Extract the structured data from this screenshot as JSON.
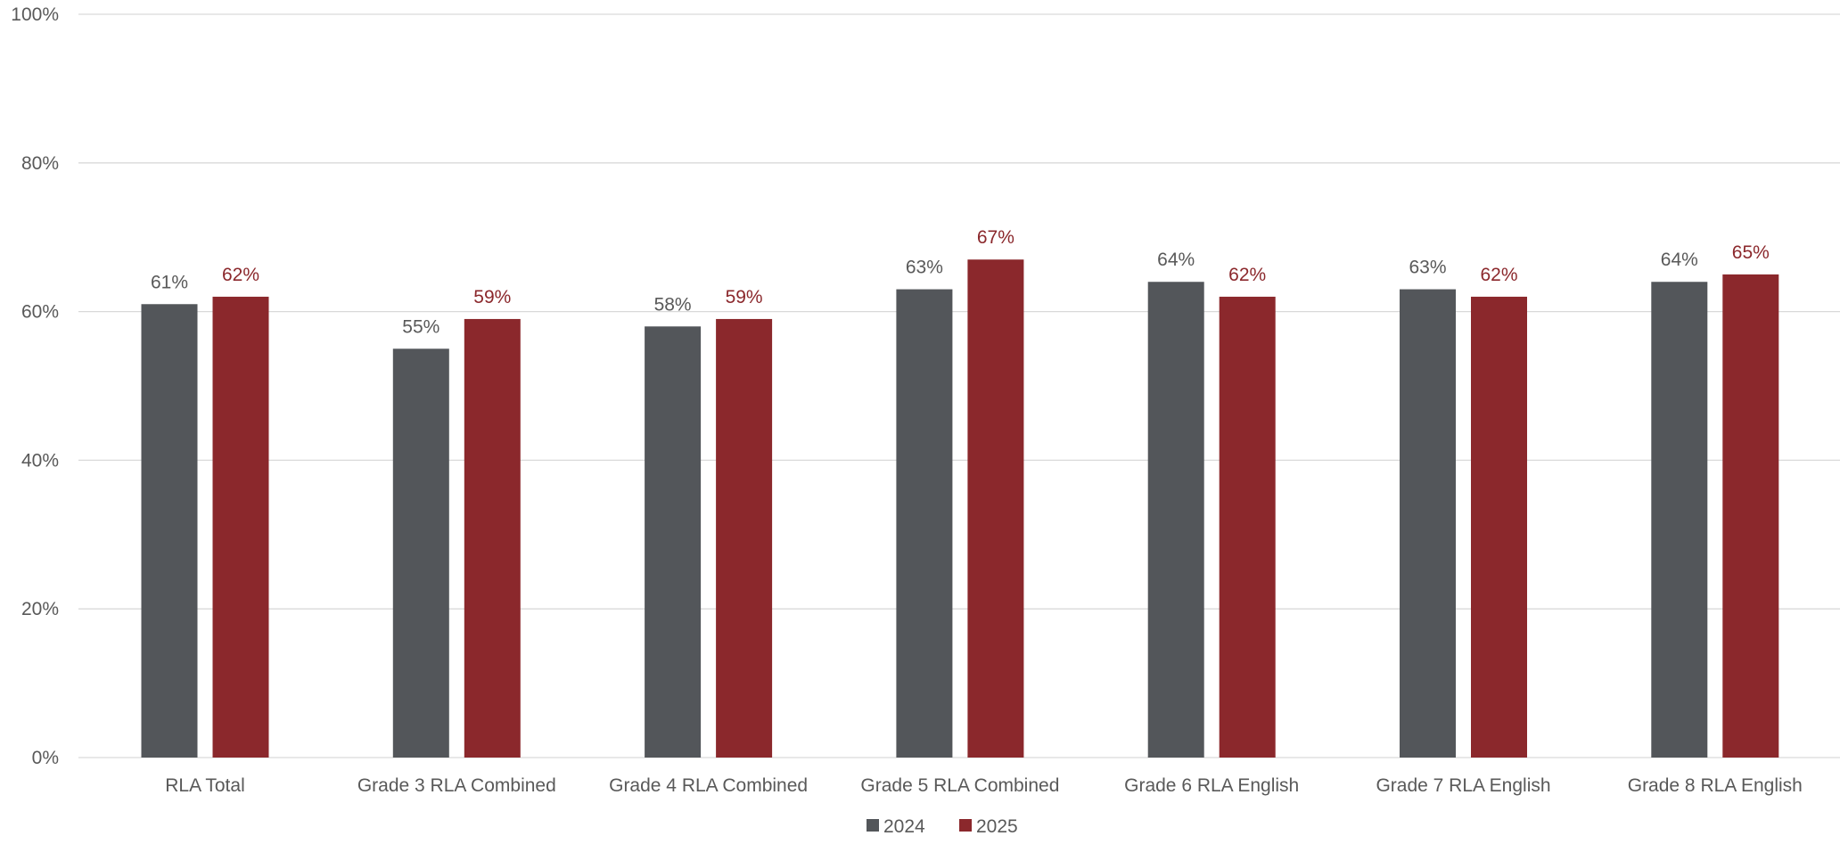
{
  "chart_data": {
    "type": "bar",
    "title": "",
    "xlabel": "",
    "ylabel": "",
    "ylim": [
      0,
      100
    ],
    "yticks": [
      0,
      20,
      40,
      60,
      80,
      100
    ],
    "ytick_labels": [
      "0%",
      "20%",
      "40%",
      "60%",
      "80%",
      "100%"
    ],
    "grid": true,
    "legend_position": "bottom-center",
    "categories": [
      "RLA Total",
      "Grade 3 RLA Combined",
      "Grade 4 RLA Combined",
      "Grade 5 RLA Combined",
      "Grade 6 RLA English",
      "Grade 7 RLA English",
      "Grade 8 RLA English"
    ],
    "series": [
      {
        "name": "2024",
        "color": "#53565A",
        "label_color": "#595959",
        "values": [
          61,
          55,
          58,
          63,
          64,
          63,
          64
        ],
        "labels": [
          "61%",
          "55%",
          "58%",
          "63%",
          "64%",
          "63%",
          "64%"
        ]
      },
      {
        "name": "2025",
        "color": "#8B282C",
        "label_color": "#8B282C",
        "values": [
          62,
          59,
          59,
          67,
          62,
          62,
          65
        ],
        "labels": [
          "62%",
          "59%",
          "59%",
          "67%",
          "62%",
          "62%",
          "65%"
        ]
      }
    ],
    "gridline_color": "#D9D9D9"
  }
}
